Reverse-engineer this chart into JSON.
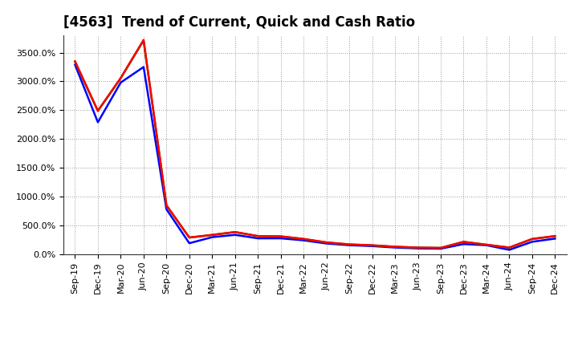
{
  "title": "[4563]  Trend of Current, Quick and Cash Ratio",
  "x_labels": [
    "Sep-19",
    "Dec-19",
    "Mar-20",
    "Jun-20",
    "Sep-20",
    "Dec-20",
    "Mar-21",
    "Jun-21",
    "Sep-21",
    "Dec-21",
    "Mar-22",
    "Jun-22",
    "Sep-22",
    "Dec-22",
    "Mar-23",
    "Jun-23",
    "Sep-23",
    "Dec-23",
    "Mar-24",
    "Jun-24",
    "Sep-24",
    "Dec-24"
  ],
  "current_ratio": [
    3350,
    2490,
    3060,
    3720,
    850,
    290,
    335,
    385,
    315,
    310,
    265,
    205,
    170,
    155,
    130,
    115,
    110,
    215,
    165,
    115,
    265,
    315
  ],
  "quick_ratio": [
    3340,
    2485,
    3055,
    3710,
    845,
    288,
    333,
    383,
    313,
    308,
    263,
    203,
    168,
    153,
    128,
    113,
    108,
    213,
    163,
    113,
    263,
    313
  ],
  "cash_ratio": [
    3290,
    2290,
    2980,
    3250,
    780,
    190,
    295,
    335,
    275,
    275,
    240,
    185,
    155,
    140,
    115,
    100,
    95,
    175,
    155,
    75,
    215,
    270
  ],
  "ylim": [
    0,
    3800
  ],
  "yticks": [
    0,
    500,
    1000,
    1500,
    2000,
    2500,
    3000,
    3500
  ],
  "current_color": "#FF0000",
  "quick_color": "#008000",
  "cash_color": "#0000FF",
  "background_color": "#FFFFFF",
  "grid_color": "#999999",
  "title_fontsize": 12,
  "legend_fontsize": 9.5,
  "tick_fontsize": 8,
  "line_width": 1.8
}
